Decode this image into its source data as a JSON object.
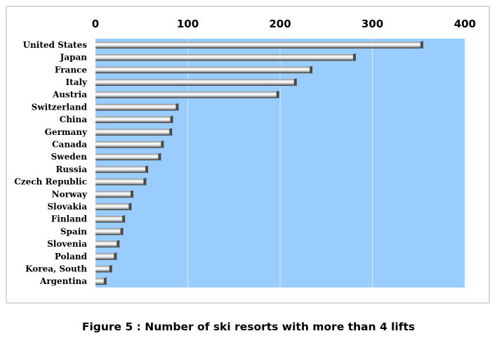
{
  "caption": "Figure 5 : Number of ski resorts with more than 4 lifts",
  "colors": {
    "plot_background": "#99ccff",
    "gridline": "#d8ecff",
    "bar_light": "#ffffff",
    "bar_dark": "#6e6e6e"
  },
  "chart_data": {
    "type": "bar",
    "orientation": "horizontal",
    "title": "",
    "xlabel": "",
    "ylabel": "",
    "xlim": [
      0,
      400
    ],
    "ticks": [
      0,
      100,
      200,
      300,
      400
    ],
    "tick_position": "top",
    "grid": true,
    "categories": [
      "United States",
      "Japan",
      "France",
      "Italy",
      "Austria",
      "Switzerland",
      "China",
      "Germany",
      "Canada",
      "Sweden",
      "Russia",
      "Czech Republic",
      "Norway",
      "Slovakia",
      "Finland",
      "Spain",
      "Slovenia",
      "Poland",
      "Korea, South",
      "Argentina"
    ],
    "values": [
      352,
      279,
      232,
      215,
      196,
      87,
      81,
      80,
      71,
      68,
      54,
      52,
      38,
      36,
      29,
      27,
      23,
      20,
      15,
      9
    ]
  }
}
